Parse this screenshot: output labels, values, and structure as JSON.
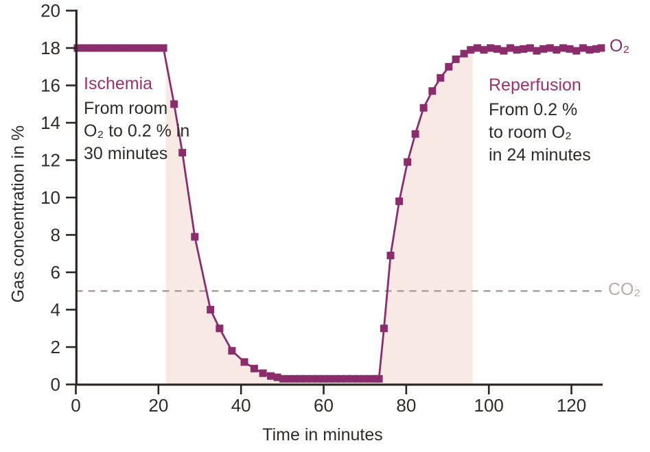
{
  "figure": {
    "ylabel": "Gas concentration in %",
    "xlabel": "Time in minutes",
    "o2_series_label": "O₂",
    "co2_series_label": "CO₂"
  },
  "annotations": {
    "ischemia": {
      "title": "Ischemia",
      "lines": [
        "From room",
        "O₂ to 0.2 % in",
        "30 minutes"
      ]
    },
    "reperfusion": {
      "title": "Reperfusion",
      "lines": [
        "From 0.2 %",
        "to room O₂",
        "in 24 minutes"
      ]
    }
  },
  "colors": {
    "curve": "#8b2c6d",
    "heading_purple": "#9c3174",
    "shade": "#f9e9e4",
    "dashed": "#ab9f9c",
    "co2_label": "#b7aca9",
    "axis": "#2a2523",
    "text": "#2f2b28"
  },
  "chart_data": {
    "type": "line",
    "title": "",
    "xlabel": "Time in minutes",
    "ylabel": "Gas concentration in %",
    "xlim": [
      0,
      128
    ],
    "ylim": [
      0,
      20
    ],
    "x_ticks": [
      0,
      20,
      40,
      60,
      80,
      100,
      120
    ],
    "y_ticks": [
      0,
      2,
      4,
      6,
      8,
      10,
      12,
      14,
      16,
      18,
      20
    ],
    "grid": false,
    "legend_position": "right-of-line-ends",
    "shaded_region": {
      "x_start": 21.8,
      "x_end": 96.1,
      "fill": "#f9e9e4",
      "note": "area under O2 curve between ischemia onset and end of reperfusion"
    },
    "series": [
      {
        "name": "O₂",
        "color": "#8b2c6d",
        "marker": "square",
        "points": [
          [
            0.4,
            18
          ],
          [
            2,
            18
          ],
          [
            3.6,
            18
          ],
          [
            5.2,
            18
          ],
          [
            6.8,
            18
          ],
          [
            8.4,
            18
          ],
          [
            10,
            18
          ],
          [
            11.6,
            18
          ],
          [
            13.2,
            18
          ],
          [
            14.8,
            18
          ],
          [
            16.4,
            18
          ],
          [
            18,
            18
          ],
          [
            19.6,
            18
          ],
          [
            21.2,
            18
          ],
          [
            23.8,
            15
          ],
          [
            25.8,
            12.4
          ],
          [
            28.8,
            7.9
          ],
          [
            32.6,
            4
          ],
          [
            34.8,
            3
          ],
          [
            37.8,
            1.8
          ],
          [
            40.8,
            1.2
          ],
          [
            43.2,
            0.85
          ],
          [
            45.3,
            0.6
          ],
          [
            47.2,
            0.45
          ],
          [
            48.8,
            0.38
          ],
          [
            50.2,
            0.3
          ],
          [
            51.6,
            0.3
          ],
          [
            53,
            0.3
          ],
          [
            54.4,
            0.3
          ],
          [
            55.8,
            0.3
          ],
          [
            57.2,
            0.3
          ],
          [
            58.6,
            0.3
          ],
          [
            60,
            0.3
          ],
          [
            61.4,
            0.3
          ],
          [
            62.8,
            0.3
          ],
          [
            64.2,
            0.3
          ],
          [
            65.6,
            0.3
          ],
          [
            67,
            0.3
          ],
          [
            68.4,
            0.3
          ],
          [
            69.8,
            0.3
          ],
          [
            71.2,
            0.3
          ],
          [
            72.6,
            0.3
          ],
          [
            73.4,
            0.3
          ],
          [
            74.6,
            3
          ],
          [
            76.2,
            6.9
          ],
          [
            78.3,
            9.8
          ],
          [
            80.3,
            11.9
          ],
          [
            82.2,
            13.4
          ],
          [
            84.2,
            14.8
          ],
          [
            86.3,
            15.7
          ],
          [
            88.3,
            16.4
          ],
          [
            90.3,
            17
          ],
          [
            92,
            17.4
          ],
          [
            94,
            17.7
          ],
          [
            95.6,
            17.9
          ],
          [
            97.2,
            18
          ],
          [
            98.8,
            17.9
          ],
          [
            100.4,
            18
          ],
          [
            102,
            17.95
          ],
          [
            103.6,
            17.85
          ],
          [
            105.2,
            18
          ],
          [
            106.8,
            17.9
          ],
          [
            108.4,
            17.95
          ],
          [
            110,
            18
          ],
          [
            111.6,
            17.85
          ],
          [
            113.2,
            17.95
          ],
          [
            114.8,
            18
          ],
          [
            116.4,
            17.9
          ],
          [
            118,
            18
          ],
          [
            119.6,
            17.95
          ],
          [
            121.2,
            17.85
          ],
          [
            122.8,
            18
          ],
          [
            124.4,
            17.9
          ],
          [
            126,
            17.95
          ],
          [
            127.2,
            18
          ]
        ]
      },
      {
        "name": "CO₂",
        "color": "#ab9f9c",
        "style": "dashed",
        "points": [
          [
            0,
            5
          ],
          [
            127.5,
            5
          ]
        ]
      }
    ]
  }
}
